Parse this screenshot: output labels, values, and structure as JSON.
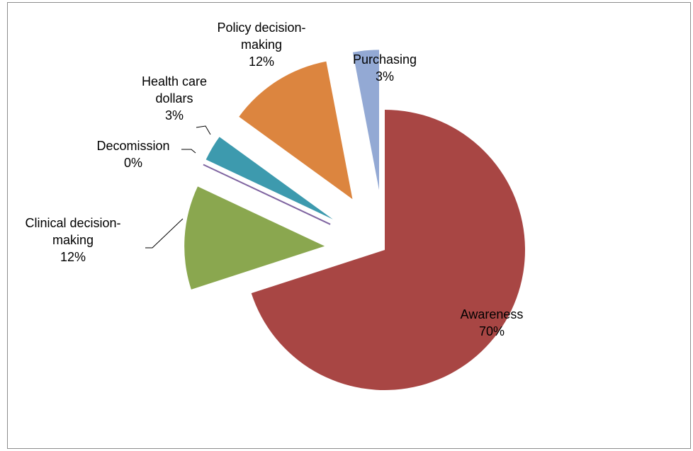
{
  "chart_data": {
    "type": "pie",
    "categories": [
      "Awareness",
      "Clinical decision-making",
      "Decomission",
      "Health care dollars",
      "Policy decision-making",
      "Purchasing"
    ],
    "values": [
      70,
      12,
      0,
      3,
      12,
      3
    ],
    "value_labels": [
      "70%",
      "12%",
      "0%",
      "3%",
      "12%",
      "3%"
    ],
    "colors": [
      "#a84644",
      "#8aa74f",
      "#7f64a0",
      "#3d9aae",
      "#dc853f",
      "#93a9d4"
    ]
  }
}
